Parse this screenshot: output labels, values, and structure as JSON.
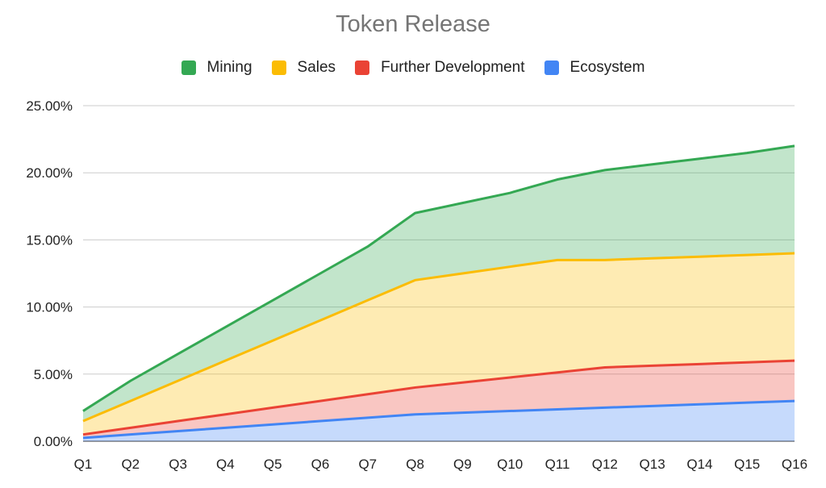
{
  "chart_data": {
    "type": "area",
    "stacked": true,
    "title": "Token Release",
    "xlabel": "",
    "ylabel": "",
    "categories": [
      "Q1",
      "Q2",
      "Q3",
      "Q4",
      "Q5",
      "Q6",
      "Q7",
      "Q8",
      "Q9",
      "Q10",
      "Q11",
      "Q12",
      "Q13",
      "Q14",
      "Q15",
      "Q16"
    ],
    "ylim": [
      0,
      25
    ],
    "yticks": [
      "0.00%",
      "5.00%",
      "10.00%",
      "15.00%",
      "20.00%",
      "25.00%"
    ],
    "grid": true,
    "legend_position": "top",
    "series": [
      {
        "name": "Ecosystem",
        "color": "#4285f4",
        "values": [
          0.25,
          0.5,
          0.75,
          1.0,
          1.25,
          1.5,
          1.75,
          2.0,
          2.125,
          2.25,
          2.375,
          2.5,
          2.625,
          2.75,
          2.875,
          3.0
        ]
      },
      {
        "name": "Further Development",
        "color": "#ea4335",
        "values": [
          0.25,
          0.5,
          0.75,
          1.0,
          1.25,
          1.5,
          1.75,
          2.0,
          2.25,
          2.5,
          2.75,
          3.0,
          3.0,
          3.0,
          3.0,
          3.0
        ]
      },
      {
        "name": "Sales",
        "color": "#fbbc04",
        "values": [
          1.0,
          2.0,
          3.0,
          4.0,
          5.0,
          6.0,
          7.0,
          8.0,
          8.125,
          8.25,
          8.375,
          8.0,
          8.0,
          8.0,
          8.0,
          8.0
        ]
      },
      {
        "name": "Mining",
        "color": "#34a853",
        "values": [
          0.75,
          1.5,
          2.0,
          2.5,
          3.0,
          3.5,
          4.0,
          5.0,
          5.25,
          5.5,
          6.0,
          6.7,
          7.0,
          7.3,
          7.6,
          8.0
        ]
      }
    ]
  }
}
